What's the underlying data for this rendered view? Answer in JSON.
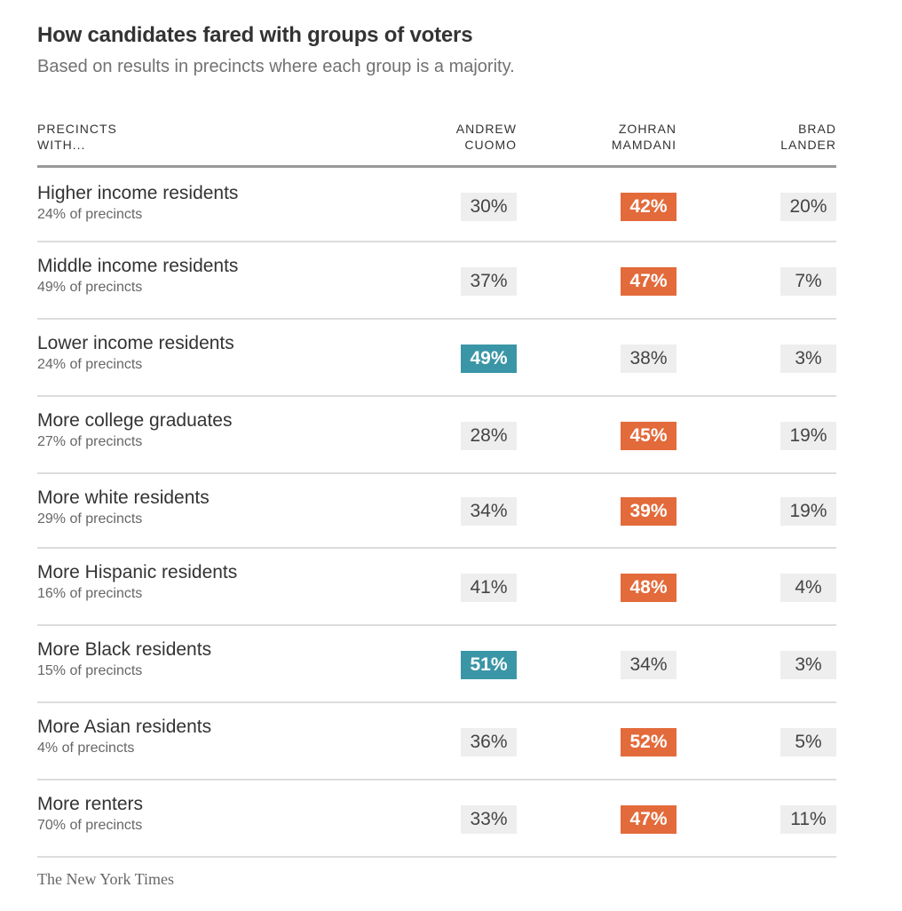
{
  "header": {
    "title": "How candidates fared with groups of voters",
    "subtitle": "Based on results in precincts where each group is a majority."
  },
  "chart_data": {
    "type": "table",
    "columns": {
      "group_line1": "PRECINCTS",
      "group_line2": "WITH...",
      "candidates": [
        {
          "line1": "ANDREW",
          "line2": "CUOMO"
        },
        {
          "line1": "ZOHRAN",
          "line2": "MAMDANI"
        },
        {
          "line1": "BRAD",
          "line2": "LANDER"
        }
      ]
    },
    "rows": [
      {
        "group": "Higher income residents",
        "share": "24% of precincts",
        "values": [
          "30%",
          "42%",
          "20%"
        ],
        "winner": 1
      },
      {
        "group": "Middle income residents",
        "share": "49% of precincts",
        "values": [
          "37%",
          "47%",
          "7%"
        ],
        "winner": 1
      },
      {
        "group": "Lower income residents",
        "share": "24% of precincts",
        "values": [
          "49%",
          "38%",
          "3%"
        ],
        "winner": 0
      },
      {
        "group": "More college graduates",
        "share": "27% of precincts",
        "values": [
          "28%",
          "45%",
          "19%"
        ],
        "winner": 1
      },
      {
        "group": "More white residents",
        "share": "29% of precincts",
        "values": [
          "34%",
          "39%",
          "19%"
        ],
        "winner": 1
      },
      {
        "group": "More Hispanic residents",
        "share": "16% of precincts",
        "values": [
          "41%",
          "48%",
          "4%"
        ],
        "winner": 1
      },
      {
        "group": "More Black residents",
        "share": "15% of precincts",
        "values": [
          "51%",
          "34%",
          "3%"
        ],
        "winner": 0
      },
      {
        "group": "More Asian residents",
        "share": "4% of precincts",
        "values": [
          "36%",
          "52%",
          "5%"
        ],
        "winner": 1
      },
      {
        "group": "More renters",
        "share": "70% of precincts",
        "values": [
          "33%",
          "47%",
          "11%"
        ],
        "winner": 1
      }
    ],
    "colors": {
      "cuomo_win": "#3a96a6",
      "mamdani_win": "#e36a3b",
      "neutral": "#eeeeee"
    }
  },
  "footer": {
    "source": "The New York Times"
  }
}
